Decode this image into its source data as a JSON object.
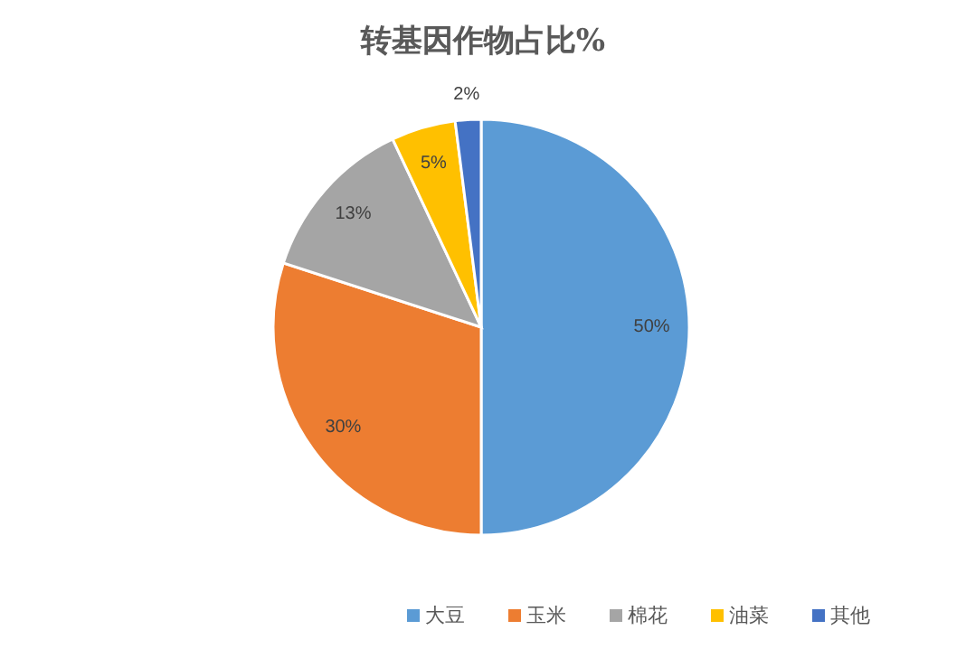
{
  "chart_data": {
    "type": "pie",
    "title": "转基因作物占比%",
    "categories": [
      "大豆",
      "玉米",
      "棉花",
      "油菜",
      "其他"
    ],
    "values": [
      50,
      30,
      13,
      5,
      2
    ],
    "colors": [
      "#5b9bd5",
      "#ed7d31",
      "#a5a5a5",
      "#ffc000",
      "#4472c4"
    ],
    "value_labels": [
      "50%",
      "30%",
      "13%",
      "5%",
      "2%"
    ],
    "legend": "bottom"
  }
}
